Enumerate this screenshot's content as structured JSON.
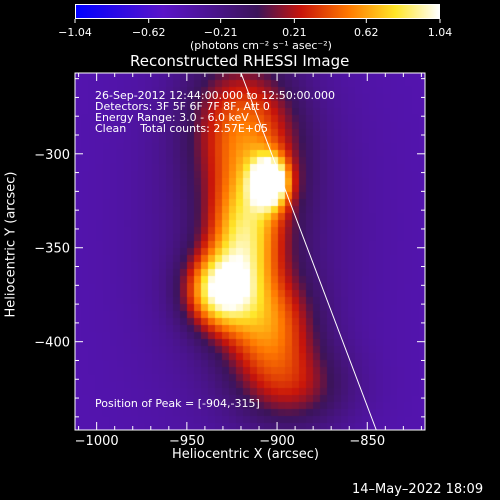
{
  "chart_data": {
    "type": "heatmap",
    "title": "Reconstructed RHESSI Image",
    "xlabel": "Heliocentric X (arcsec)",
    "ylabel": "Heliocentric Y (arcsec)",
    "xlim": [
      -1012,
      -818
    ],
    "ylim": [
      -447,
      -257
    ],
    "x_ticks": [
      -1000,
      -950,
      -900,
      -850
    ],
    "y_ticks": [
      -300,
      -350,
      -400
    ],
    "x_tick_labels": [
      "−1000",
      "−950",
      "−900",
      "−850"
    ],
    "y_tick_labels": [
      "−300",
      "−350",
      "−400"
    ],
    "colorbar": {
      "min": -1.04,
      "max": 1.04,
      "ticks": [
        -1.04,
        -0.62,
        -0.21,
        0.21,
        0.62,
        1.04
      ],
      "tick_labels": [
        "−1.04",
        "−0.62",
        "−0.21",
        "0.21",
        "0.62",
        "1.04"
      ],
      "units": "(photons cm⁻² s⁻¹ asec⁻²)",
      "colormap": "blue-purple-red-yellow-white"
    },
    "annotations": {
      "time_range": "26-Sep-2012 12:44:00.000 to 12:50:00.000",
      "detectors": "Detectors: 3F 5F 6F 7F 8F, Att 0",
      "energy": "Energy Range: 3.0 - 6.0 keV",
      "method": "Clean    Total counts: 2.57E+05",
      "peak": "Position of Peak = [-904,-315]"
    },
    "peak": [
      -904,
      -315
    ],
    "sources": [
      {
        "x": -904,
        "y": -315,
        "sx": 7,
        "sy": 9,
        "amp": 1.0
      },
      {
        "x": -918,
        "y": -345,
        "sx": 14,
        "sy": 22,
        "amp": 0.62
      },
      {
        "x": -933,
        "y": -373,
        "sx": 13,
        "sy": 14,
        "amp": 0.78
      },
      {
        "x": -905,
        "y": -392,
        "sx": 18,
        "sy": 20,
        "amp": 0.55
      },
      {
        "x": -912,
        "y": -300,
        "sx": 20,
        "sy": 30,
        "amp": 0.35
      },
      {
        "x": -925,
        "y": -280,
        "sx": 20,
        "sy": 25,
        "amp": 0.28
      },
      {
        "x": -890,
        "y": -425,
        "sx": 22,
        "sy": 16,
        "amp": 0.35
      },
      {
        "x": -915,
        "y": -340,
        "sx": 40,
        "sy": 70,
        "amp": 0.22
      }
    ],
    "limb_line": [
      [
        -920,
        -257
      ],
      [
        -845,
        -447
      ]
    ],
    "background_level": -0.42,
    "date_stamp": "14–May–2022 18:09",
    "colors": {
      "background": "#000000",
      "axes": "#ffffff",
      "limb": "#ffffff"
    }
  }
}
